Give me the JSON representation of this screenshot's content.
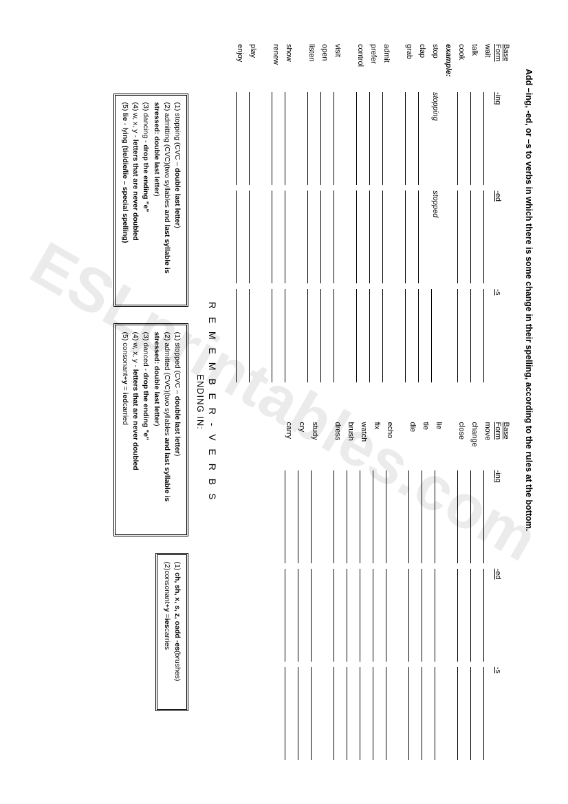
{
  "instruction": "Add –ing, -ed, or –s to verbs in which there is some change in their spelling, according to the rules at the bottom.",
  "headers": {
    "base": "Base",
    "form": "Form",
    "ing": "-ing",
    "ed": "-ed",
    "s": "-s"
  },
  "leftExample": {
    "label": "example:",
    "base": "stop",
    "ing": "stopping",
    "ed": "stopped"
  },
  "leftGroups": [
    [
      "wait",
      "talk",
      "cook"
    ],
    [
      "clap",
      "grab"
    ],
    [
      "admit",
      "prefer",
      "control"
    ],
    [
      "visit",
      "open",
      "listen"
    ],
    [
      "show",
      "renew"
    ],
    [
      "play",
      "enjoy"
    ]
  ],
  "rightGroups": [
    [
      "move",
      "change",
      "close"
    ],
    [
      "lie",
      "tie",
      "die"
    ],
    [
      "echo",
      "fix",
      "watch",
      "brush",
      "dress"
    ],
    [
      "study",
      "cry",
      "carry"
    ]
  ],
  "rememberTitle": "R E M E M B E R  -  V E R B S",
  "endingIn": "ENDING IN:",
  "boxA": [
    "(1) stopping (CVC – <b>double last letter</b>)",
    "(2) admitting  (CVC)(two syllables <b>and last syllable is stressed: double last letter</b>)",
    "(3) dancing  -  <b>drop the ending \"e\"</b>",
    "(4) w, x, y  - <b>letters that are never doubled</b>",
    "(5) <b>lie</b>  -  ly<b>ing (tie/die/lie – special spelling)</b>"
  ],
  "boxB": [
    "(1) stopped (CVC – <b>double last letter</b>)",
    "(2) admitted (CVC)(two syllables <b>and last syllable is stressed: double last letter</b>)",
    "(3) danced  -  <b>drop the ending \"e\"</b>",
    "(4) w, x, y  - <b>letters that are never doubled</b>",
    "(5) consonant+<b>y</b>  = <b>ied</b>carried"
  ],
  "boxC": [
    "(1)  <b>ch, sh, x, s, z,  oadd   -es</b>(brushes)",
    "(2)consonant+<b>y</b>  =<b>ies</b>carries"
  ]
}
